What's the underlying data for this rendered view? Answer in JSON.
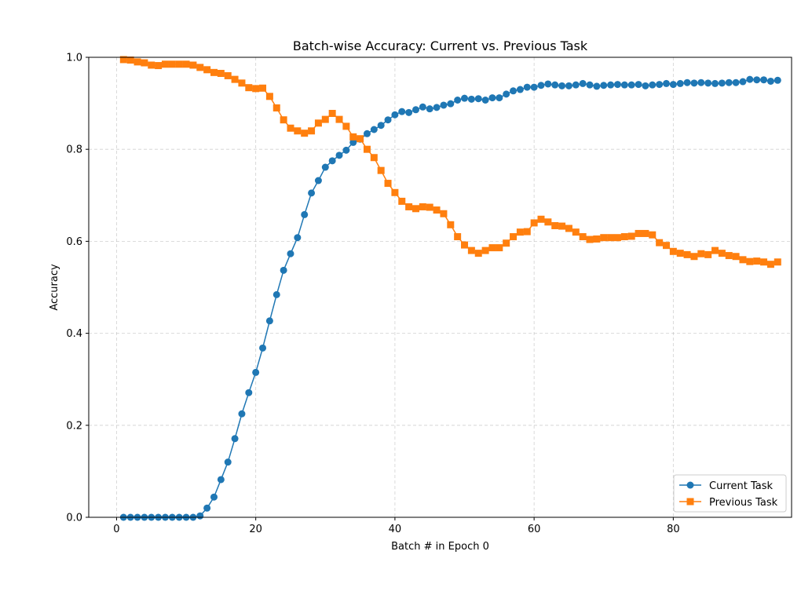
{
  "chart_data": {
    "type": "line",
    "title": "Batch-wise Accuracy: Current vs. Previous Task",
    "xlabel": "Batch # in Epoch 0",
    "ylabel": "Accuracy",
    "xlim": [
      -4,
      97
    ],
    "ylim": [
      0.0,
      1.0
    ],
    "xticks": [
      0,
      20,
      40,
      60,
      80
    ],
    "yticks": [
      0.0,
      0.2,
      0.4,
      0.6,
      0.8,
      1.0
    ],
    "xtick_labels": [
      "0",
      "20",
      "40",
      "60",
      "80"
    ],
    "ytick_labels": [
      "0.0",
      "0.2",
      "0.4",
      "0.6",
      "0.8",
      "1.0"
    ],
    "grid": true,
    "legend_position": "bottom-right",
    "x": [
      1,
      2,
      3,
      4,
      5,
      6,
      7,
      8,
      9,
      10,
      11,
      12,
      13,
      14,
      15,
      16,
      17,
      18,
      19,
      20,
      21,
      22,
      23,
      24,
      25,
      26,
      27,
      28,
      29,
      30,
      31,
      32,
      33,
      34,
      35,
      36,
      37,
      38,
      39,
      40,
      41,
      42,
      43,
      44,
      45,
      46,
      47,
      48,
      49,
      50,
      51,
      52,
      53,
      54,
      55,
      56,
      57,
      58,
      59,
      60,
      61,
      62,
      63,
      64,
      65,
      66,
      67,
      68,
      69,
      70,
      71,
      72,
      73,
      74,
      75,
      76,
      77,
      78,
      79,
      80,
      81,
      82,
      83,
      84,
      85,
      86,
      87,
      88,
      89,
      90,
      91,
      92,
      93,
      94,
      95
    ],
    "series": [
      {
        "name": "Current Task",
        "color": "#1f77b4",
        "marker": "circle",
        "values": [
          0.0,
          0.0,
          0.0,
          0.0,
          0.0,
          0.0,
          0.0,
          0.0,
          0.0,
          0.0,
          0.0,
          0.003,
          0.02,
          0.044,
          0.082,
          0.12,
          0.171,
          0.225,
          0.271,
          0.315,
          0.368,
          0.427,
          0.484,
          0.537,
          0.573,
          0.608,
          0.658,
          0.705,
          0.732,
          0.761,
          0.775,
          0.787,
          0.798,
          0.815,
          0.822,
          0.834,
          0.843,
          0.852,
          0.864,
          0.875,
          0.882,
          0.88,
          0.886,
          0.892,
          0.888,
          0.891,
          0.896,
          0.899,
          0.907,
          0.911,
          0.909,
          0.91,
          0.907,
          0.912,
          0.912,
          0.92,
          0.927,
          0.93,
          0.935,
          0.935,
          0.939,
          0.942,
          0.94,
          0.938,
          0.938,
          0.94,
          0.943,
          0.94,
          0.937,
          0.939,
          0.94,
          0.941,
          0.94,
          0.94,
          0.941,
          0.938,
          0.94,
          0.941,
          0.943,
          0.941,
          0.943,
          0.945,
          0.944,
          0.945,
          0.944,
          0.943,
          0.944,
          0.945,
          0.945,
          0.947,
          0.952,
          0.951,
          0.951,
          0.948,
          0.95
        ]
      },
      {
        "name": "Previous Task",
        "color": "#ff7f0e",
        "marker": "square",
        "values": [
          0.995,
          0.994,
          0.99,
          0.988,
          0.983,
          0.982,
          0.985,
          0.985,
          0.985,
          0.985,
          0.983,
          0.978,
          0.973,
          0.967,
          0.965,
          0.96,
          0.952,
          0.944,
          0.934,
          0.932,
          0.933,
          0.915,
          0.89,
          0.864,
          0.846,
          0.84,
          0.835,
          0.84,
          0.857,
          0.865,
          0.878,
          0.865,
          0.85,
          0.827,
          0.823,
          0.8,
          0.782,
          0.754,
          0.726,
          0.706,
          0.687,
          0.675,
          0.671,
          0.675,
          0.674,
          0.668,
          0.66,
          0.636,
          0.61,
          0.592,
          0.58,
          0.574,
          0.58,
          0.586,
          0.586,
          0.596,
          0.61,
          0.62,
          0.621,
          0.64,
          0.648,
          0.642,
          0.634,
          0.633,
          0.628,
          0.62,
          0.61,
          0.604,
          0.605,
          0.608,
          0.608,
          0.608,
          0.61,
          0.611,
          0.617,
          0.617,
          0.614,
          0.597,
          0.591,
          0.578,
          0.574,
          0.571,
          0.567,
          0.573,
          0.571,
          0.58,
          0.574,
          0.569,
          0.567,
          0.56,
          0.556,
          0.557,
          0.555,
          0.55,
          0.555
        ]
      }
    ]
  }
}
